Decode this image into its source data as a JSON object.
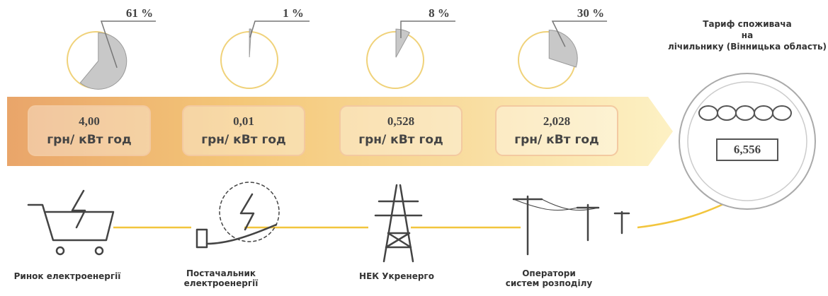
{
  "stages": [
    {
      "share": 61,
      "share_label": "61 %",
      "price": "4,00",
      "unit": "грн/ кВт год",
      "label": "Ринок електроенергії"
    },
    {
      "share": 1,
      "share_label": "1 %",
      "price": "0,01",
      "unit": "грн/ кВт год",
      "label": "Постачальник електроенергії"
    },
    {
      "share": 8,
      "share_label": "8 %",
      "price": "0,528",
      "unit": "грн/ кВт год",
      "label": "НЕК Укренерго"
    },
    {
      "share": 30,
      "share_label": "30 %",
      "price": "2,028",
      "unit": "грн/ кВт год",
      "label": "Оператори систем розподілу"
    }
  ],
  "meter": {
    "title": "Тариф споживача на лічильнику (Вінницька область)",
    "value": "6,556"
  }
}
